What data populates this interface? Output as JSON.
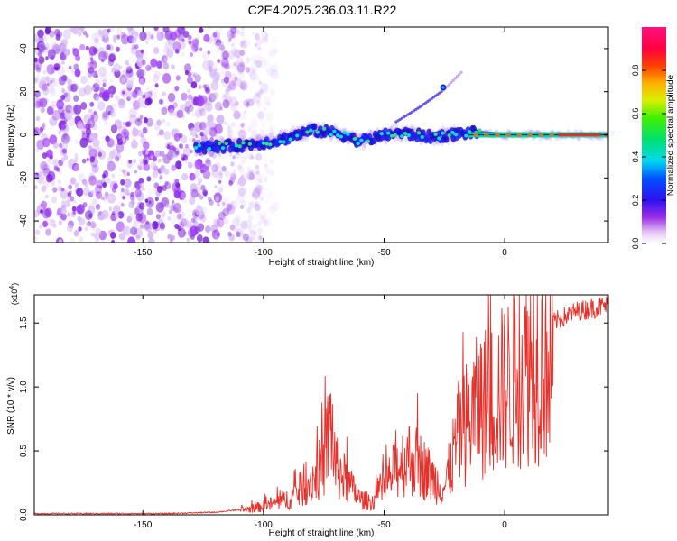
{
  "title": "C2E4.2025.236.03.11.R22",
  "colors": {
    "snr_line": "#e8302a",
    "spectrogram_noise": "#8a2be2",
    "axis": "#000000"
  },
  "chart_data": [
    {
      "type": "heatmap",
      "xlabel": "Height of straight line (km)",
      "ylabel": "Frequency (Hz)",
      "xlim": [
        -195,
        43
      ],
      "ylim": [
        -50,
        50
      ],
      "xticks": [
        -150,
        -100,
        -50,
        0
      ],
      "yticks": [
        -40,
        -20,
        0,
        20,
        40
      ],
      "colorbar": {
        "label": "Normalized spectral amplitude",
        "range": [
          0,
          1
        ],
        "ticks": [
          "0.0",
          "0.2",
          "0.4",
          "0.6",
          "0.8"
        ],
        "colormap": "rainbow"
      },
      "features": {
        "noise_region_x": [
          -195,
          -110
        ],
        "track": [
          {
            "x": -128,
            "y": -6
          },
          {
            "x": -110,
            "y": -5
          },
          {
            "x": -95,
            "y": -3
          },
          {
            "x": -80,
            "y": 2
          },
          {
            "x": -70,
            "y": 1
          },
          {
            "x": -60,
            "y": -3
          },
          {
            "x": -45,
            "y": 1
          },
          {
            "x": -30,
            "y": -1
          },
          {
            "x": -15,
            "y": 1
          },
          {
            "x": 0,
            "y": 0
          },
          {
            "x": 20,
            "y": 0
          },
          {
            "x": 43,
            "y": 0
          }
        ],
        "branch": [
          {
            "x": -45,
            "y": 6
          },
          {
            "x": -35,
            "y": 13
          },
          {
            "x": -25,
            "y": 21
          },
          {
            "x": -18,
            "y": 29
          }
        ]
      }
    },
    {
      "type": "line",
      "xlabel": "Height of straight line (km)",
      "ylabel": "SNR (10 * v/v)",
      "multiplier": "(x10",
      "multiplier_exp": "4",
      "multiplier_close": ")",
      "xlim": [
        -195,
        43
      ],
      "ylim": [
        0,
        1.72
      ],
      "xticks": [
        -150,
        -100,
        -50,
        0
      ],
      "yticks": [
        "0.0",
        "0.5",
        "1.0",
        "1.5"
      ],
      "ytick_values": [
        0,
        0.5,
        1.0,
        1.5
      ],
      "series": [
        {
          "x": [
            -195,
            -180,
            -160,
            -140,
            -120,
            -110,
            -100,
            -90,
            -85,
            -80,
            -75,
            -72,
            -70,
            -68,
            -65,
            -60,
            -55,
            -50,
            -45,
            -40,
            -35,
            -30,
            -25,
            -22,
            -20,
            -15,
            -10,
            -5,
            0,
            5,
            10,
            15,
            20,
            25,
            30,
            35,
            40,
            43
          ],
          "values": [
            0.01,
            0.01,
            0.01,
            0.01,
            0.02,
            0.04,
            0.08,
            0.15,
            0.22,
            0.33,
            0.48,
            0.9,
            0.45,
            0.4,
            0.3,
            0.15,
            0.12,
            0.25,
            0.45,
            0.55,
            0.48,
            0.35,
            0.25,
            0.5,
            0.7,
            0.9,
            1.05,
            1.1,
            1.2,
            1.35,
            1.45,
            1.5,
            1.55,
            1.6,
            1.64,
            1.66,
            1.68,
            1.69
          ]
        }
      ]
    }
  ]
}
